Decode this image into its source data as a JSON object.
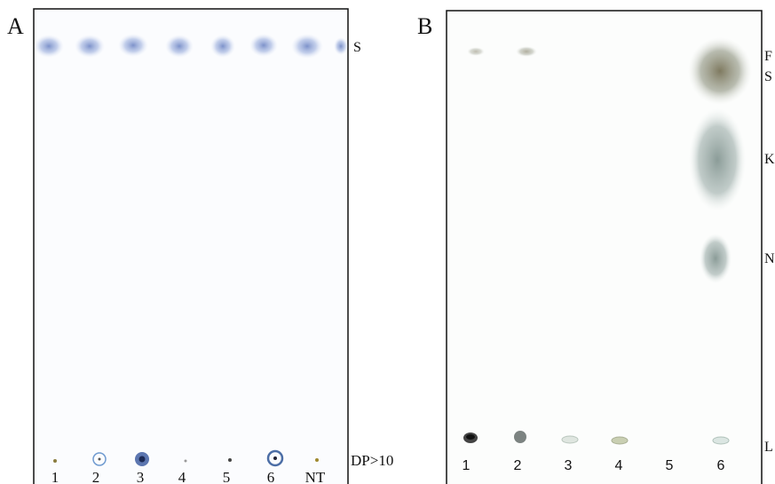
{
  "panels": [
    {
      "label": "A",
      "lanes": [
        "1",
        "2",
        "3",
        "4",
        "5",
        "6",
        "NT"
      ],
      "markers": [
        "S",
        "DP>10"
      ]
    },
    {
      "label": "B",
      "lanes": [
        "1",
        "2",
        "3",
        "4",
        "5",
        "6"
      ],
      "markers": [
        "F",
        "S",
        "K",
        "N",
        "L"
      ]
    }
  ]
}
